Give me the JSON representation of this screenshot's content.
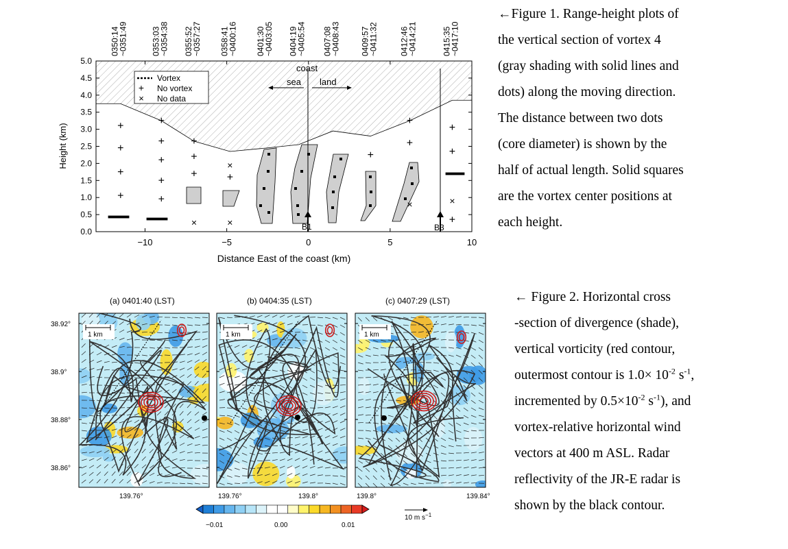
{
  "figure1": {
    "time_labels": [
      "0350:14\n~0351:49",
      "0353:03\n~0354:38",
      "0355:52\n~0357:27",
      "0358:41\n~0400:16",
      "0401:30\n~0403:05",
      "0404:19\n~0405:54",
      "0407:08\n~0408:43",
      "0409:57\n~0411:32",
      "0412:46\n~0414:21",
      "0415:35\n~0417:10"
    ],
    "ylabel": "Height (km)",
    "xlabel": "Distance East of the coast (km)",
    "yticks": [
      "5.0",
      "4.5",
      "4.0",
      "3.5",
      "3.0",
      "2.5",
      "2.0",
      "1.5",
      "1.0",
      "0.5",
      "0.0"
    ],
    "xticks": [
      "−10",
      "−5",
      "0",
      "5",
      "10"
    ],
    "legend": {
      "vortex": "Vortex",
      "no_vortex": "No vortex",
      "no_data": "No data"
    },
    "annotations": {
      "coast": "coast",
      "sea": "sea",
      "land": "land",
      "b1": "B1",
      "b3": "B3"
    },
    "caption_lines": [
      "←Figure 1. Range-height plots of",
      "the vertical section of vortex 4",
      "(gray shading with solid lines and",
      "dots) along the moving direction.",
      "The distance between two dots",
      "(core diameter) is shown by the",
      "half of actual length. Solid squares",
      "are the vortex center positions at",
      "each height."
    ]
  },
  "chart_data": {
    "type": "scatter",
    "xlabel": "Distance East of the coast (km)",
    "ylabel": "Height (km)",
    "xlim": [
      -13,
      10
    ],
    "ylim": [
      0,
      5
    ],
    "x": [
      -11.5,
      -9,
      -7,
      -4.8,
      -2.6,
      -0.6,
      1.5,
      3.8,
      6.2,
      8.8
    ],
    "echo_top_km": [
      3.75,
      3.25,
      2.65,
      2.35,
      2.45,
      2.55,
      2.95,
      2.8,
      3.25,
      3.85
    ],
    "no_vortex_heights_km": [
      [
        3.1,
        2.45,
        1.75,
        1.05
      ],
      [
        3.25,
        2.65,
        2.1,
        1.5,
        0.95
      ],
      [
        2.65,
        2.2,
        1.7
      ],
      [
        1.6
      ],
      [],
      [],
      [],
      [
        2.25
      ],
      [
        3.25,
        2.6
      ],
      [
        3.05,
        2.35,
        0.35
      ]
    ],
    "no_data_heights_km": [
      [],
      [],
      [
        0.27
      ],
      [
        0.27,
        1.95
      ],
      [],
      [],
      [],
      [],
      [
        0.8
      ],
      [
        0.9
      ]
    ],
    "coast_x": 0,
    "b1_x": 0,
    "b3_x": 8
  },
  "figure2": {
    "panel_titles": [
      "(a) 0401:40 (LST)",
      "(b) 0404:35 (LST)",
      "(c) 0407:29 (LST)"
    ],
    "lat_ticks": [
      "38.92°",
      "38.9°",
      "38.88°",
      "38.86°"
    ],
    "lon_ticks": [
      [
        "139.76°"
      ],
      [
        "139.76°",
        "139.8°"
      ],
      [
        "139.8°",
        "139.84°"
      ]
    ],
    "scale_label": "1 km",
    "colorbar_ticks": [
      "−0.01",
      "0.00",
      "0.01"
    ],
    "vector_label": "10 m s",
    "vector_sup": "−1",
    "colorbar_colors": [
      "#1f7fd6",
      "#3f9be6",
      "#66b6ee",
      "#8fd0f4",
      "#b7e5f8",
      "#dcf3fa",
      "#ffffff",
      "#ffffff",
      "#fffcc9",
      "#fff36c",
      "#fbd92a",
      "#f6b722",
      "#f29021",
      "#ed6425",
      "#e83a26"
    ],
    "caption_lines": [
      "← Figure 2. Horizontal cross",
      "-section of divergence (shade),",
      "vertical vorticity (red contour,",
      "outermost contour is 1.0× 10",
      "incremented by 0.5×10",
      "vortex-relative horizontal wind",
      "vectors at 400 m ASL. Radar",
      "reflectivity of the JR-E radar is",
      "shown by the black contour."
    ],
    "caption_l4": {
      "sup1": "-2",
      "unit": " s",
      "sup2": "-1",
      "tail": ","
    },
    "caption_l5": {
      "sup1": "-2",
      "unit": " s",
      "sup2": "-1",
      "tail": "), and"
    }
  }
}
